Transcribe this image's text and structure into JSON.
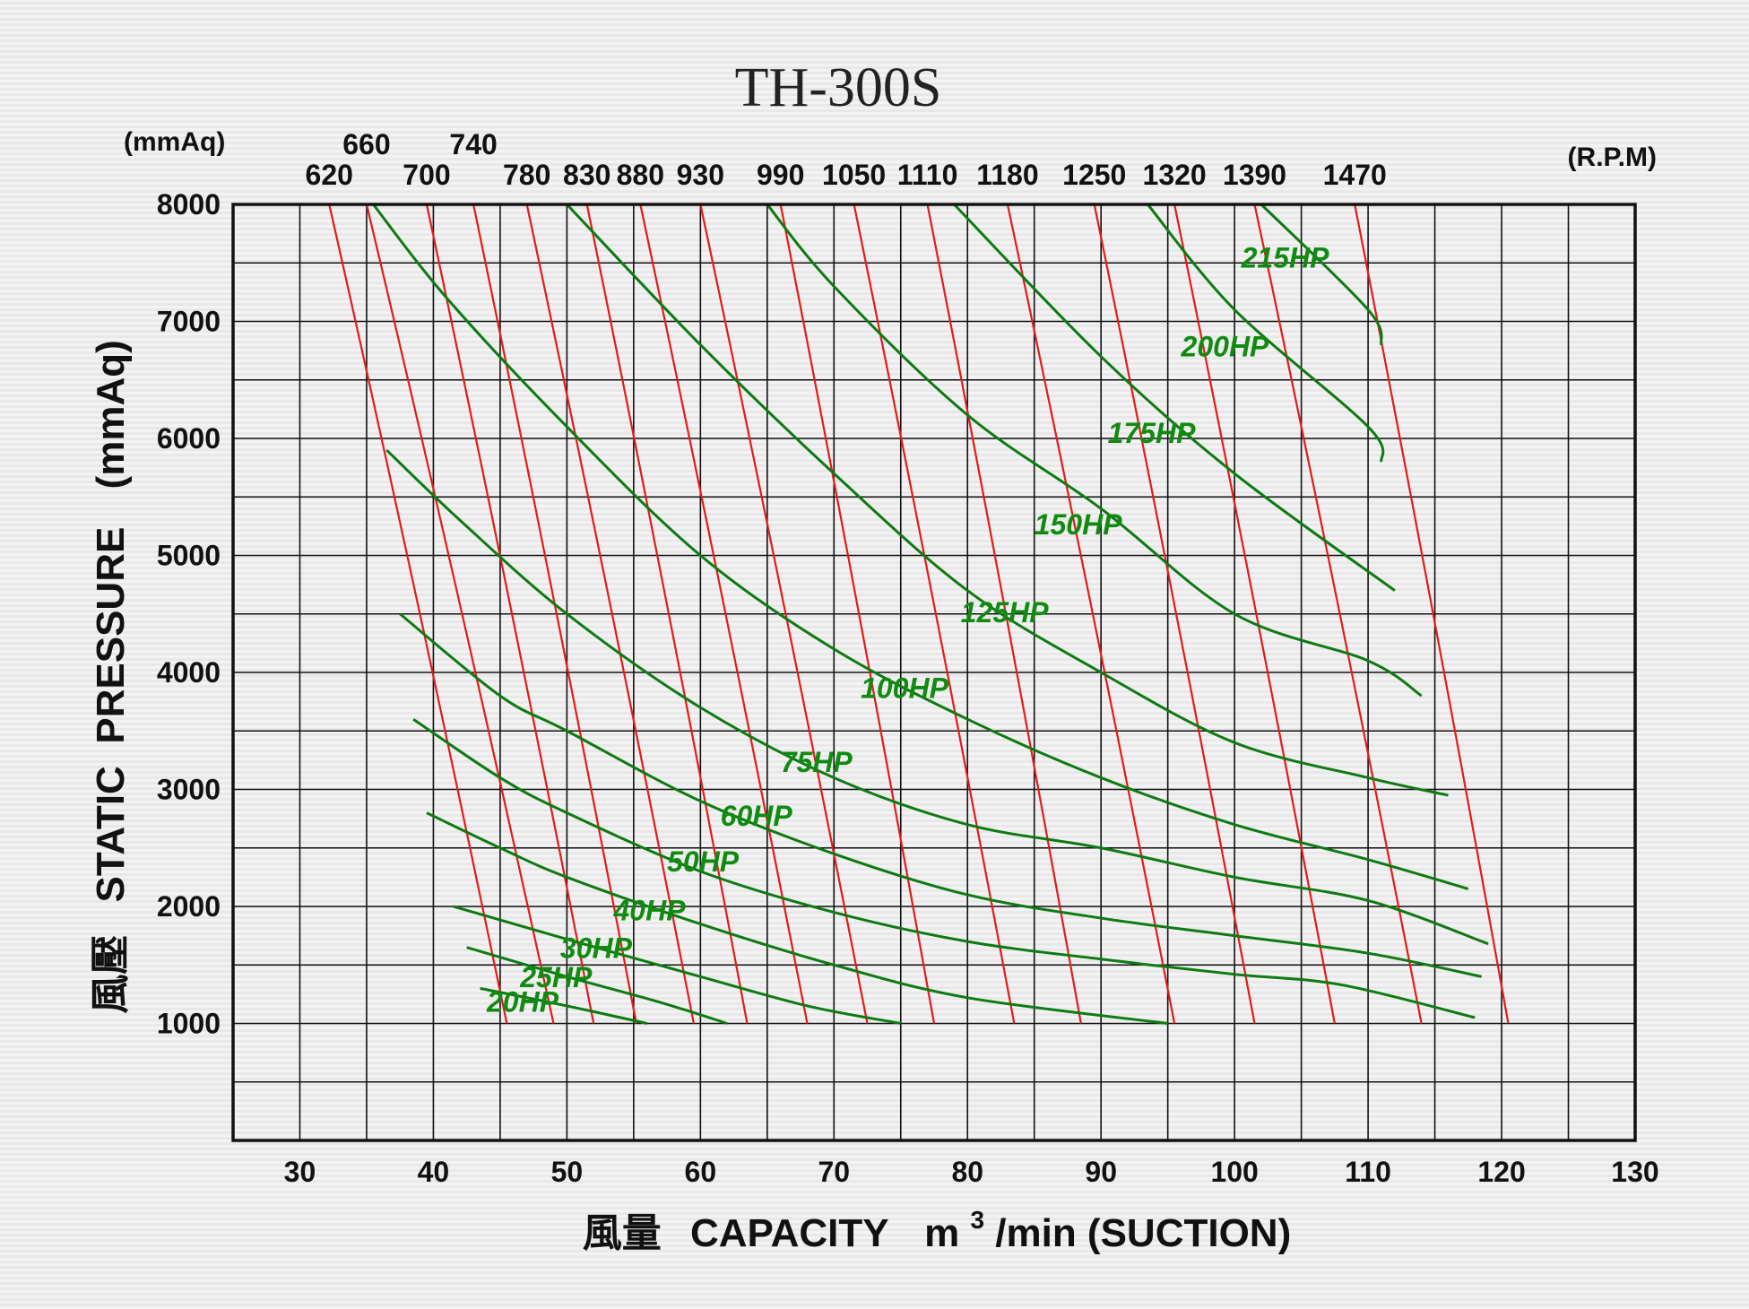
{
  "chart_data": {
    "type": "line",
    "title": "TH-300S",
    "xlabel": "風量 CAPACITY m³/min (SUCTION)",
    "xlabel_parts": {
      "cn": "風量",
      "en": "CAPACITY",
      "unit": "m",
      "sup": "3",
      "rest": "/min (SUCTION)"
    },
    "ylabel": "風壓 STATIC PRESSURE (mmAq)",
    "ylabel_parts": {
      "cn": "風壓",
      "en": "STATIC  PRESSURE",
      "unit": "(mmAq)"
    },
    "y_unit_top": "(mmAq)",
    "rpm_unit": "(R.P.M)",
    "xlim": [
      25,
      130
    ],
    "ylim": [
      0,
      8000
    ],
    "x_ticks": [
      30,
      40,
      50,
      60,
      70,
      80,
      90,
      100,
      110,
      120,
      130
    ],
    "y_ticks": [
      1000,
      2000,
      3000,
      4000,
      5000,
      6000,
      7000,
      8000
    ],
    "grid": true,
    "rpm_curves": [
      {
        "name": "620",
        "points": [
          [
            32.2,
            8000
          ],
          [
            45.5,
            1000
          ]
        ]
      },
      {
        "name": "660",
        "points": [
          [
            35.0,
            8000
          ],
          [
            49.0,
            1000
          ]
        ]
      },
      {
        "name": "700",
        "points": [
          [
            39.5,
            8000
          ],
          [
            52.0,
            1000
          ]
        ]
      },
      {
        "name": "740",
        "points": [
          [
            43.0,
            8000
          ],
          [
            55.2,
            1000
          ]
        ]
      },
      {
        "name": "780",
        "points": [
          [
            47.0,
            8000
          ],
          [
            59.5,
            1000
          ]
        ]
      },
      {
        "name": "830",
        "points": [
          [
            51.5,
            8000
          ],
          [
            63.5,
            1000
          ]
        ]
      },
      {
        "name": "880",
        "points": [
          [
            55.5,
            8000
          ],
          [
            68.0,
            1000
          ]
        ]
      },
      {
        "name": "930",
        "points": [
          [
            60.0,
            8000
          ],
          [
            72.5,
            1000
          ]
        ]
      },
      {
        "name": "990",
        "points": [
          [
            66.0,
            8000
          ],
          [
            77.5,
            1000
          ]
        ]
      },
      {
        "name": "1050",
        "points": [
          [
            71.5,
            8000
          ],
          [
            83.5,
            1000
          ]
        ]
      },
      {
        "name": "1110",
        "points": [
          [
            77.0,
            8000
          ],
          [
            88.5,
            1000
          ]
        ]
      },
      {
        "name": "1180",
        "points": [
          [
            83.0,
            8000
          ],
          [
            95.5,
            1000
          ]
        ]
      },
      {
        "name": "1250",
        "points": [
          [
            89.5,
            8000
          ],
          [
            101.5,
            1000
          ]
        ]
      },
      {
        "name": "1320",
        "points": [
          [
            95.5,
            8000
          ],
          [
            107.5,
            1000
          ]
        ]
      },
      {
        "name": "1390",
        "points": [
          [
            101.5,
            8000
          ],
          [
            114.0,
            1000
          ]
        ]
      },
      {
        "name": "1470",
        "points": [
          [
            109.0,
            8000
          ],
          [
            120.5,
            1000
          ]
        ]
      }
    ],
    "hp_curves": [
      {
        "name": "20HP",
        "points": [
          [
            43.5,
            1300
          ],
          [
            50,
            1150
          ],
          [
            56,
            1000
          ]
        ]
      },
      {
        "name": "25HP",
        "points": [
          [
            42.5,
            1650
          ],
          [
            50,
            1400
          ],
          [
            57,
            1180
          ],
          [
            62,
            1000
          ]
        ]
      },
      {
        "name": "30HP",
        "points": [
          [
            41.5,
            2000
          ],
          [
            50,
            1720
          ],
          [
            60,
            1400
          ],
          [
            68,
            1150
          ],
          [
            75,
            1000
          ]
        ]
      },
      {
        "name": "40HP",
        "points": [
          [
            39.5,
            2800
          ],
          [
            45,
            2500
          ],
          [
            50,
            2250
          ],
          [
            60,
            1850
          ],
          [
            70,
            1500
          ],
          [
            80,
            1220
          ],
          [
            95,
            1000
          ]
        ]
      },
      {
        "name": "50HP",
        "points": [
          [
            38.5,
            3600
          ],
          [
            45,
            3100
          ],
          [
            50,
            2800
          ],
          [
            60,
            2300
          ],
          [
            70,
            1950
          ],
          [
            80,
            1700
          ],
          [
            90,
            1550
          ],
          [
            100,
            1420
          ],
          [
            108,
            1330
          ],
          [
            118,
            1050
          ]
        ]
      },
      {
        "name": "60HP",
        "points": [
          [
            37.5,
            4500
          ],
          [
            45,
            3800
          ],
          [
            50,
            3500
          ],
          [
            60,
            2900
          ],
          [
            70,
            2450
          ],
          [
            80,
            2100
          ],
          [
            90,
            1900
          ],
          [
            100,
            1750
          ],
          [
            110,
            1600
          ],
          [
            118.5,
            1400
          ]
        ]
      },
      {
        "name": "75HP",
        "points": [
          [
            36.5,
            5900
          ],
          [
            42,
            5300
          ],
          [
            50,
            4500
          ],
          [
            60,
            3700
          ],
          [
            70,
            3100
          ],
          [
            80,
            2700
          ],
          [
            90,
            2500
          ],
          [
            100,
            2250
          ],
          [
            110,
            2050
          ],
          [
            119,
            1680
          ]
        ]
      },
      {
        "name": "100HP",
        "points": [
          [
            35.5,
            8000
          ],
          [
            41,
            7200
          ],
          [
            50,
            6100
          ],
          [
            60,
            5000
          ],
          [
            70,
            4200
          ],
          [
            80,
            3600
          ],
          [
            90,
            3100
          ],
          [
            100,
            2700
          ],
          [
            110,
            2400
          ],
          [
            117.5,
            2150
          ]
        ]
      },
      {
        "name": "125HP",
        "points": [
          [
            50,
            8000
          ],
          [
            60,
            6800
          ],
          [
            70,
            5700
          ],
          [
            80,
            4700
          ],
          [
            90,
            4000
          ],
          [
            100,
            3400
          ],
          [
            110,
            3100
          ],
          [
            116,
            2950
          ]
        ]
      },
      {
        "name": "150HP",
        "points": [
          [
            65,
            8000
          ],
          [
            70,
            7300
          ],
          [
            80,
            6200
          ],
          [
            90,
            5400
          ],
          [
            100,
            4500
          ],
          [
            110,
            4100
          ],
          [
            114,
            3800
          ]
        ]
      },
      {
        "name": "175HP",
        "points": [
          [
            79,
            8000
          ],
          [
            90,
            6700
          ],
          [
            100,
            5700
          ],
          [
            112,
            4700
          ]
        ]
      },
      {
        "name": "200HP",
        "points": [
          [
            93.5,
            8000
          ],
          [
            100,
            7100
          ],
          [
            110,
            6100
          ],
          [
            111,
            5800
          ]
        ]
      },
      {
        "name": "215HP",
        "points": [
          [
            102,
            8000
          ],
          [
            110,
            7100
          ],
          [
            111,
            6800
          ]
        ]
      }
    ]
  }
}
